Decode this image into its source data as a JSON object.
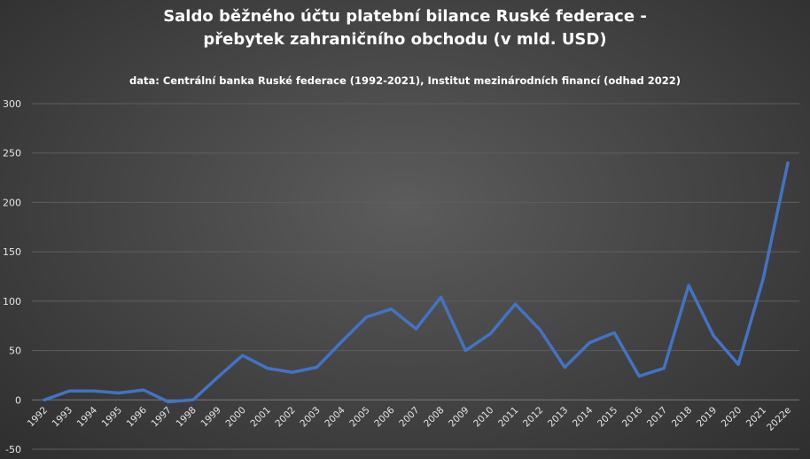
{
  "chart_data": {
    "type": "line",
    "title_line1": "Saldo běžného účtu platební bilance Ruské federace -",
    "title_line2": "přebytek zahraničního obchodu (v mld. USD)",
    "subtitle": "data: Centrální banka Ruské federace (1992-2021), Institut mezinárodních financí (odhad 2022)",
    "xlabel": "",
    "ylabel": "",
    "ylim": [
      -50,
      300
    ],
    "yticks": [
      "-50",
      "0",
      "50",
      "100",
      "150",
      "200",
      "250",
      "300"
    ],
    "grid": true,
    "line_color": "#4472c4",
    "categories": [
      "1992",
      "1993",
      "1994",
      "1995",
      "1996",
      "1997",
      "1998",
      "1999",
      "2000",
      "2001",
      "2002",
      "2003",
      "2004",
      "2005",
      "2006",
      "2007",
      "2008",
      "2009",
      "2010",
      "2011",
      "2012",
      "2013",
      "2014",
      "2015",
      "2016",
      "2017",
      "2018",
      "2019",
      "2020",
      "2021",
      "2022e"
    ],
    "series": [
      {
        "values": [
          0,
          9,
          9,
          7,
          10,
          -2,
          0,
          23,
          45,
          32,
          28,
          33,
          59,
          84,
          92,
          72,
          104,
          50,
          67,
          97,
          71,
          33,
          58,
          68,
          24,
          32,
          116,
          65,
          36,
          122,
          240
        ]
      }
    ]
  }
}
